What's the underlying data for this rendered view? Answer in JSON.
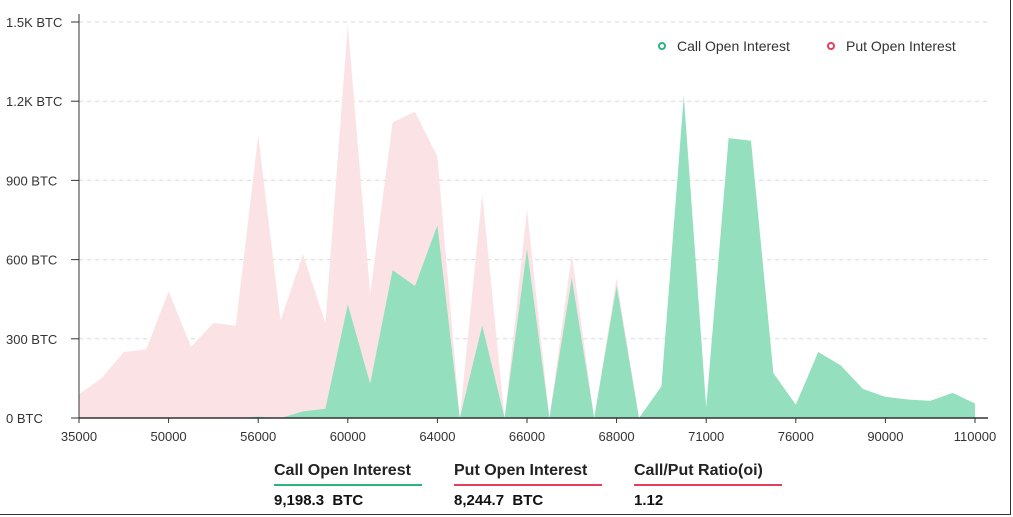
{
  "chart_data": {
    "type": "area",
    "ylabel": "",
    "xlabel": "",
    "y_unit": "BTC",
    "ylim": [
      0,
      1500
    ],
    "y_ticks": [
      "0 BTC",
      "300 BTC",
      "600 BTC",
      "900 BTC",
      "1.2K BTC",
      "1.5K BTC"
    ],
    "x_ticks": [
      "35000",
      "50000",
      "56000",
      "60000",
      "64000",
      "66000",
      "68000",
      "71000",
      "76000",
      "90000",
      "110000"
    ],
    "grid": true,
    "legend_position": "top-right",
    "series": [
      {
        "name": "Put  Open Interest",
        "color": "#fbe3e5",
        "marker_color": "#e0405a",
        "points": [
          [
            0.0,
            90
          ],
          [
            0.5,
            150
          ],
          [
            1.0,
            250
          ],
          [
            1.5,
            260
          ],
          [
            2.0,
            480
          ],
          [
            2.5,
            270
          ],
          [
            3.0,
            360
          ],
          [
            3.5,
            350
          ],
          [
            4.0,
            1070
          ],
          [
            4.5,
            370
          ],
          [
            5.0,
            620
          ],
          [
            5.5,
            360
          ],
          [
            6.0,
            1490
          ],
          [
            6.5,
            470
          ],
          [
            7.0,
            1120
          ],
          [
            7.5,
            1160
          ],
          [
            8.0,
            990
          ],
          [
            8.5,
            0
          ],
          [
            9.0,
            850
          ],
          [
            9.5,
            0
          ],
          [
            10.0,
            790
          ],
          [
            10.5,
            0
          ],
          [
            11.0,
            620
          ],
          [
            11.5,
            0
          ],
          [
            12.0,
            530
          ],
          [
            12.5,
            0
          ]
        ]
      },
      {
        "name": "Call Open Interest",
        "color": "#93dfbe",
        "marker_color": "#2cb67d",
        "points": [
          [
            0.0,
            0
          ],
          [
            3.5,
            0
          ],
          [
            4.0,
            5
          ],
          [
            4.5,
            0
          ],
          [
            5.0,
            25
          ],
          [
            5.5,
            35
          ],
          [
            6.0,
            430
          ],
          [
            6.5,
            130
          ],
          [
            7.0,
            560
          ],
          [
            7.5,
            500
          ],
          [
            8.0,
            730
          ],
          [
            8.5,
            0
          ],
          [
            9.0,
            350
          ],
          [
            9.5,
            0
          ],
          [
            10.0,
            640
          ],
          [
            10.5,
            0
          ],
          [
            11.0,
            530
          ],
          [
            11.5,
            0
          ],
          [
            12.0,
            500
          ],
          [
            12.5,
            0
          ],
          [
            13.0,
            120
          ],
          [
            13.5,
            1220
          ],
          [
            14.0,
            40
          ],
          [
            14.5,
            1060
          ],
          [
            15.0,
            1050
          ],
          [
            15.5,
            170
          ],
          [
            16.0,
            50
          ],
          [
            16.5,
            250
          ],
          [
            17.0,
            200
          ],
          [
            17.5,
            110
          ],
          [
            18.0,
            80
          ],
          [
            18.5,
            70
          ],
          [
            19.0,
            65
          ],
          [
            19.5,
            95
          ],
          [
            20.0,
            55
          ]
        ]
      }
    ]
  },
  "legend": {
    "call_label": "Call Open Interest",
    "put_label": "Put  Open Interest"
  },
  "stats": [
    {
      "label": "Call Open Interest",
      "value": "9,198.3  BTC",
      "underline_color": "#2cb67d"
    },
    {
      "label": "Put Open Interest",
      "value": "8,244.7  BTC",
      "underline_color": "#e0405a"
    },
    {
      "label": "Call/Put Ratio(oi)",
      "value": "1.12",
      "underline_color": "#e0405a"
    }
  ]
}
